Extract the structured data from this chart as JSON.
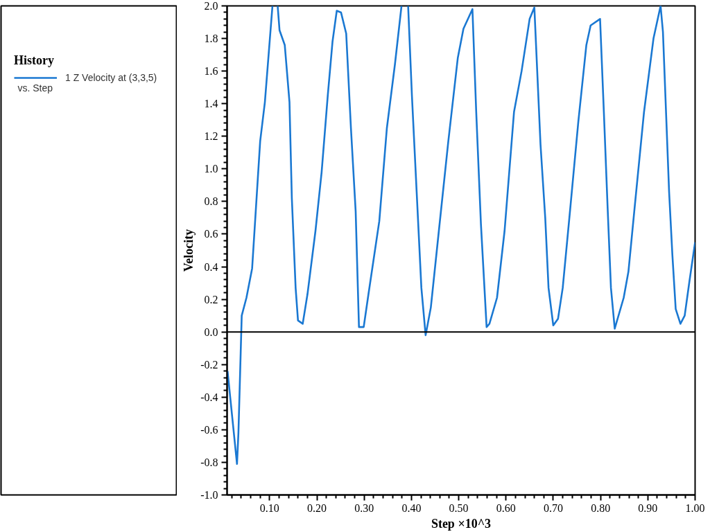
{
  "chart_data": {
    "type": "line",
    "xlabel": "Step ×10^3",
    "ylabel": "Velocity",
    "legend_title": "History",
    "legend": "top left",
    "grid": false,
    "annotations": [
      "vs. Step"
    ],
    "xlim": [
      0.01,
      1.0
    ],
    "ylim": [
      -1.0,
      2.0
    ],
    "xticks": [
      {
        "value": 0.02,
        "label": null
      },
      {
        "value": 0.04,
        "label": null
      },
      {
        "value": 0.06,
        "label": null
      },
      {
        "value": 0.08,
        "label": null
      },
      {
        "value": 0.1,
        "label": "0.10"
      },
      {
        "value": 0.12,
        "label": null
      },
      {
        "value": 0.14,
        "label": null
      },
      {
        "value": 0.16,
        "label": null
      },
      {
        "value": 0.18,
        "label": null
      },
      {
        "value": 0.2,
        "label": "0.20"
      },
      {
        "value": 0.22,
        "label": null
      },
      {
        "value": 0.24,
        "label": null
      },
      {
        "value": 0.26,
        "label": null
      },
      {
        "value": 0.28,
        "label": null
      },
      {
        "value": 0.3,
        "label": "0.30"
      },
      {
        "value": 0.32,
        "label": null
      },
      {
        "value": 0.34,
        "label": null
      },
      {
        "value": 0.36,
        "label": null
      },
      {
        "value": 0.38,
        "label": null
      },
      {
        "value": 0.4,
        "label": "0.40"
      },
      {
        "value": 0.42,
        "label": null
      },
      {
        "value": 0.44,
        "label": null
      },
      {
        "value": 0.46,
        "label": null
      },
      {
        "value": 0.48,
        "label": null
      },
      {
        "value": 0.5,
        "label": "0.50"
      },
      {
        "value": 0.52,
        "label": null
      },
      {
        "value": 0.54,
        "label": null
      },
      {
        "value": 0.56,
        "label": null
      },
      {
        "value": 0.58,
        "label": null
      },
      {
        "value": 0.6,
        "label": "0.60"
      },
      {
        "value": 0.62,
        "label": null
      },
      {
        "value": 0.64,
        "label": null
      },
      {
        "value": 0.66,
        "label": null
      },
      {
        "value": 0.68,
        "label": null
      },
      {
        "value": 0.7,
        "label": "0.70"
      },
      {
        "value": 0.72,
        "label": null
      },
      {
        "value": 0.74,
        "label": null
      },
      {
        "value": 0.76,
        "label": null
      },
      {
        "value": 0.78,
        "label": null
      },
      {
        "value": 0.8,
        "label": "0.80"
      },
      {
        "value": 0.82,
        "label": null
      },
      {
        "value": 0.84,
        "label": null
      },
      {
        "value": 0.86,
        "label": null
      },
      {
        "value": 0.88,
        "label": null
      },
      {
        "value": 0.9,
        "label": "0.90"
      },
      {
        "value": 0.92,
        "label": null
      },
      {
        "value": 0.94,
        "label": null
      },
      {
        "value": 0.96,
        "label": null
      },
      {
        "value": 0.98,
        "label": null
      },
      {
        "value": 1.0,
        "label": "1.00"
      }
    ],
    "yticks": [
      {
        "value": -1.0,
        "label": "-1.0"
      },
      {
        "value": -0.96,
        "label": null
      },
      {
        "value": -0.92,
        "label": null
      },
      {
        "value": -0.88,
        "label": null
      },
      {
        "value": -0.84,
        "label": null
      },
      {
        "value": -0.8,
        "label": "-0.8"
      },
      {
        "value": -0.76,
        "label": null
      },
      {
        "value": -0.72,
        "label": null
      },
      {
        "value": -0.68,
        "label": null
      },
      {
        "value": -0.64,
        "label": null
      },
      {
        "value": -0.6,
        "label": "-0.6"
      },
      {
        "value": -0.56,
        "label": null
      },
      {
        "value": -0.52,
        "label": null
      },
      {
        "value": -0.48,
        "label": null
      },
      {
        "value": -0.44,
        "label": null
      },
      {
        "value": -0.4,
        "label": "-0.4"
      },
      {
        "value": -0.36,
        "label": null
      },
      {
        "value": -0.32,
        "label": null
      },
      {
        "value": -0.28,
        "label": null
      },
      {
        "value": -0.24,
        "label": null
      },
      {
        "value": -0.2,
        "label": "-0.2"
      },
      {
        "value": -0.16,
        "label": null
      },
      {
        "value": -0.12,
        "label": null
      },
      {
        "value": -0.08,
        "label": null
      },
      {
        "value": -0.04,
        "label": null
      },
      {
        "value": 0.0,
        "label": "0.0"
      },
      {
        "value": 0.04,
        "label": null
      },
      {
        "value": 0.08,
        "label": null
      },
      {
        "value": 0.12,
        "label": null
      },
      {
        "value": 0.16,
        "label": null
      },
      {
        "value": 0.2,
        "label": "0.2"
      },
      {
        "value": 0.24,
        "label": null
      },
      {
        "value": 0.28,
        "label": null
      },
      {
        "value": 0.32,
        "label": null
      },
      {
        "value": 0.36,
        "label": null
      },
      {
        "value": 0.4,
        "label": "0.4"
      },
      {
        "value": 0.44,
        "label": null
      },
      {
        "value": 0.48,
        "label": null
      },
      {
        "value": 0.52,
        "label": null
      },
      {
        "value": 0.56,
        "label": null
      },
      {
        "value": 0.6,
        "label": "0.6"
      },
      {
        "value": 0.64,
        "label": null
      },
      {
        "value": 0.68,
        "label": null
      },
      {
        "value": 0.72,
        "label": null
      },
      {
        "value": 0.76,
        "label": null
      },
      {
        "value": 0.8,
        "label": "0.8"
      },
      {
        "value": 0.84,
        "label": null
      },
      {
        "value": 0.88,
        "label": null
      },
      {
        "value": 0.92,
        "label": null
      },
      {
        "value": 0.96,
        "label": null
      },
      {
        "value": 1.0,
        "label": "1.0"
      },
      {
        "value": 1.04,
        "label": null
      },
      {
        "value": 1.08,
        "label": null
      },
      {
        "value": 1.12,
        "label": null
      },
      {
        "value": 1.16,
        "label": null
      },
      {
        "value": 1.2,
        "label": "1.2"
      },
      {
        "value": 1.24,
        "label": null
      },
      {
        "value": 1.28,
        "label": null
      },
      {
        "value": 1.32,
        "label": null
      },
      {
        "value": 1.36,
        "label": null
      },
      {
        "value": 1.4,
        "label": "1.4"
      },
      {
        "value": 1.44,
        "label": null
      },
      {
        "value": 1.48,
        "label": null
      },
      {
        "value": 1.52,
        "label": null
      },
      {
        "value": 1.56,
        "label": null
      },
      {
        "value": 1.6,
        "label": "1.6"
      },
      {
        "value": 1.64,
        "label": null
      },
      {
        "value": 1.68,
        "label": null
      },
      {
        "value": 1.72,
        "label": null
      },
      {
        "value": 1.76,
        "label": null
      },
      {
        "value": 1.8,
        "label": "1.8"
      },
      {
        "value": 1.84,
        "label": null
      },
      {
        "value": 1.88,
        "label": null
      },
      {
        "value": 1.92,
        "label": null
      },
      {
        "value": 1.96,
        "label": null
      },
      {
        "value": 2.0,
        "label": "2.0"
      }
    ],
    "ref_lines": [
      {
        "axis": "y",
        "value": 0,
        "color": "#000000"
      }
    ],
    "series": [
      {
        "name": "1 Z Velocity at (3,3,5)",
        "color": "#1a78d2",
        "x": [
          0.011,
          0.031,
          0.034,
          0.041,
          0.051,
          0.063,
          0.08,
          0.09,
          0.106,
          0.111,
          0.117,
          0.121,
          0.132,
          0.142,
          0.147,
          0.155,
          0.16,
          0.17,
          0.18,
          0.197,
          0.21,
          0.223,
          0.233,
          0.242,
          0.251,
          0.262,
          0.272,
          0.282,
          0.289,
          0.299,
          0.309,
          0.332,
          0.348,
          0.365,
          0.379,
          0.386,
          0.393,
          0.401,
          0.411,
          0.421,
          0.43,
          0.441,
          0.458,
          0.478,
          0.498,
          0.51,
          0.529,
          0.537,
          0.547,
          0.559,
          0.565,
          0.581,
          0.597,
          0.617,
          0.633,
          0.65,
          0.66,
          0.673,
          0.683,
          0.69,
          0.7,
          0.71,
          0.72,
          0.736,
          0.753,
          0.77,
          0.779,
          0.799,
          0.807,
          0.815,
          0.822,
          0.83,
          0.849,
          0.859,
          0.872,
          0.892,
          0.912,
          0.927,
          0.932,
          0.945,
          0.952,
          0.959,
          0.969,
          0.978,
          0.988,
          1.0
        ],
        "values": [
          -0.24,
          -0.81,
          -0.62,
          0.1,
          0.21,
          0.39,
          1.17,
          1.41,
          2.0,
          null,
          2.0,
          1.85,
          1.76,
          1.41,
          0.82,
          0.27,
          0.07,
          0.05,
          0.23,
          0.62,
          0.98,
          1.45,
          1.78,
          1.97,
          1.96,
          1.83,
          1.25,
          0.74,
          0.03,
          0.03,
          0.23,
          0.68,
          1.25,
          1.64,
          2.0,
          null,
          2.0,
          1.45,
          0.86,
          0.27,
          -0.02,
          0.15,
          0.62,
          1.17,
          1.68,
          1.86,
          1.98,
          1.35,
          0.66,
          0.03,
          0.05,
          0.21,
          0.62,
          1.35,
          1.6,
          1.92,
          1.99,
          1.15,
          0.7,
          0.27,
          0.04,
          0.08,
          0.27,
          0.76,
          1.29,
          1.76,
          1.88,
          1.92,
          1.35,
          0.76,
          0.27,
          0.02,
          0.21,
          0.37,
          0.76,
          1.35,
          1.8,
          2.0,
          1.84,
          0.86,
          0.47,
          0.14,
          0.05,
          0.1,
          0.31,
          0.55
        ]
      }
    ]
  }
}
